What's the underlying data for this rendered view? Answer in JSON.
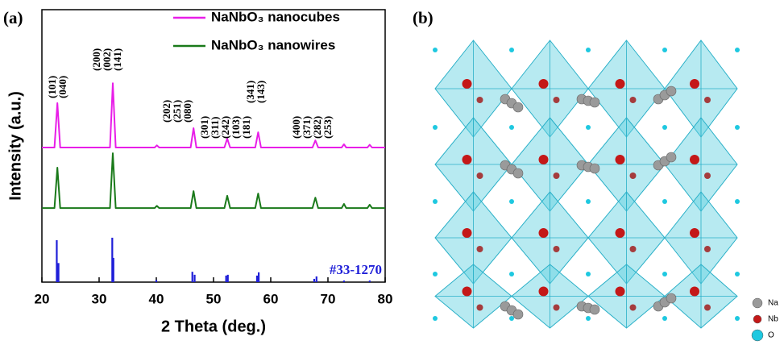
{
  "panel_labels": [
    "(a)",
    "(b)"
  ],
  "chart_data": {
    "type": "line",
    "xlabel": "2 Theta (deg.)",
    "ylabel": "Intensity (a.u.)",
    "xlim": [
      20,
      80
    ],
    "xticks": [
      20,
      30,
      40,
      50,
      60,
      70,
      80
    ],
    "ylim": [
      0,
      100
    ],
    "legend": "top-center",
    "x": [
      20,
      22.2,
      22.7,
      23.2,
      31.9,
      32.4,
      32.9,
      39.7,
      40.1,
      40.5,
      46.0,
      46.5,
      47.0,
      51.9,
      52.4,
      52.9,
      57.3,
      57.8,
      58.3,
      67.3,
      67.8,
      68.3,
      72.4,
      72.8,
      73.2,
      76.9,
      77.3,
      77.7,
      80
    ],
    "series": [
      {
        "name": "NaNbO₃ nanocubes",
        "color": "#e81ee8",
        "values": [
          49.4,
          49.4,
          65.7,
          49.4,
          49.4,
          73,
          49.4,
          49.4,
          50.2,
          49.4,
          49.4,
          56.5,
          49.4,
          49.4,
          52.7,
          49.4,
          49.4,
          55,
          49.4,
          49.4,
          52,
          49.4,
          49.4,
          50.6,
          49.4,
          49.4,
          50.4,
          49.4,
          49.4
        ]
      },
      {
        "name": "NaNbO₃ nanowires",
        "color": "#1a7a1a",
        "values": [
          27.2,
          27.2,
          42,
          27.2,
          27.2,
          47.3,
          27.2,
          27.2,
          28,
          27.2,
          27.2,
          33.4,
          27.2,
          27.2,
          31.7,
          27.2,
          27.2,
          32.5,
          27.2,
          27.2,
          31,
          27.2,
          27.2,
          28.7,
          27.2,
          27.2,
          28.4,
          27.2,
          27.2
        ]
      },
      {
        "name": "#33-1270",
        "color": "#1f1fd8",
        "type": "stem",
        "x": [
          22.6,
          22.9,
          32.3,
          32.5,
          40.0,
          46.3,
          46.7,
          52.2,
          52.5,
          57.6,
          57.9,
          67.6,
          68.0,
          72.8,
          77.3
        ],
        "values": [
          15.4,
          7,
          16.3,
          8.9,
          0.8,
          3.8,
          2.7,
          2.4,
          2.7,
          2.4,
          3.6,
          1.2,
          2.1,
          0.6,
          0.6
        ]
      }
    ],
    "annotations": [
      {
        "labels": [
          "(101)",
          "(040)"
        ]
      },
      {
        "labels": [
          "(200)",
          "(002)",
          "(141)"
        ]
      },
      {
        "labels": [
          "(202)",
          "(251)",
          "(080)"
        ]
      },
      {
        "labels": [
          "(301)",
          "(311)",
          "(242)",
          "(103)",
          "(181)"
        ]
      },
      {
        "labels": [
          "(341)",
          "(143)"
        ]
      },
      {
        "labels": [
          "(400)",
          "(371)",
          "(282)",
          "(253)"
        ]
      }
    ]
  },
  "structure_legend": [
    "Na",
    "Nb",
    "O"
  ]
}
